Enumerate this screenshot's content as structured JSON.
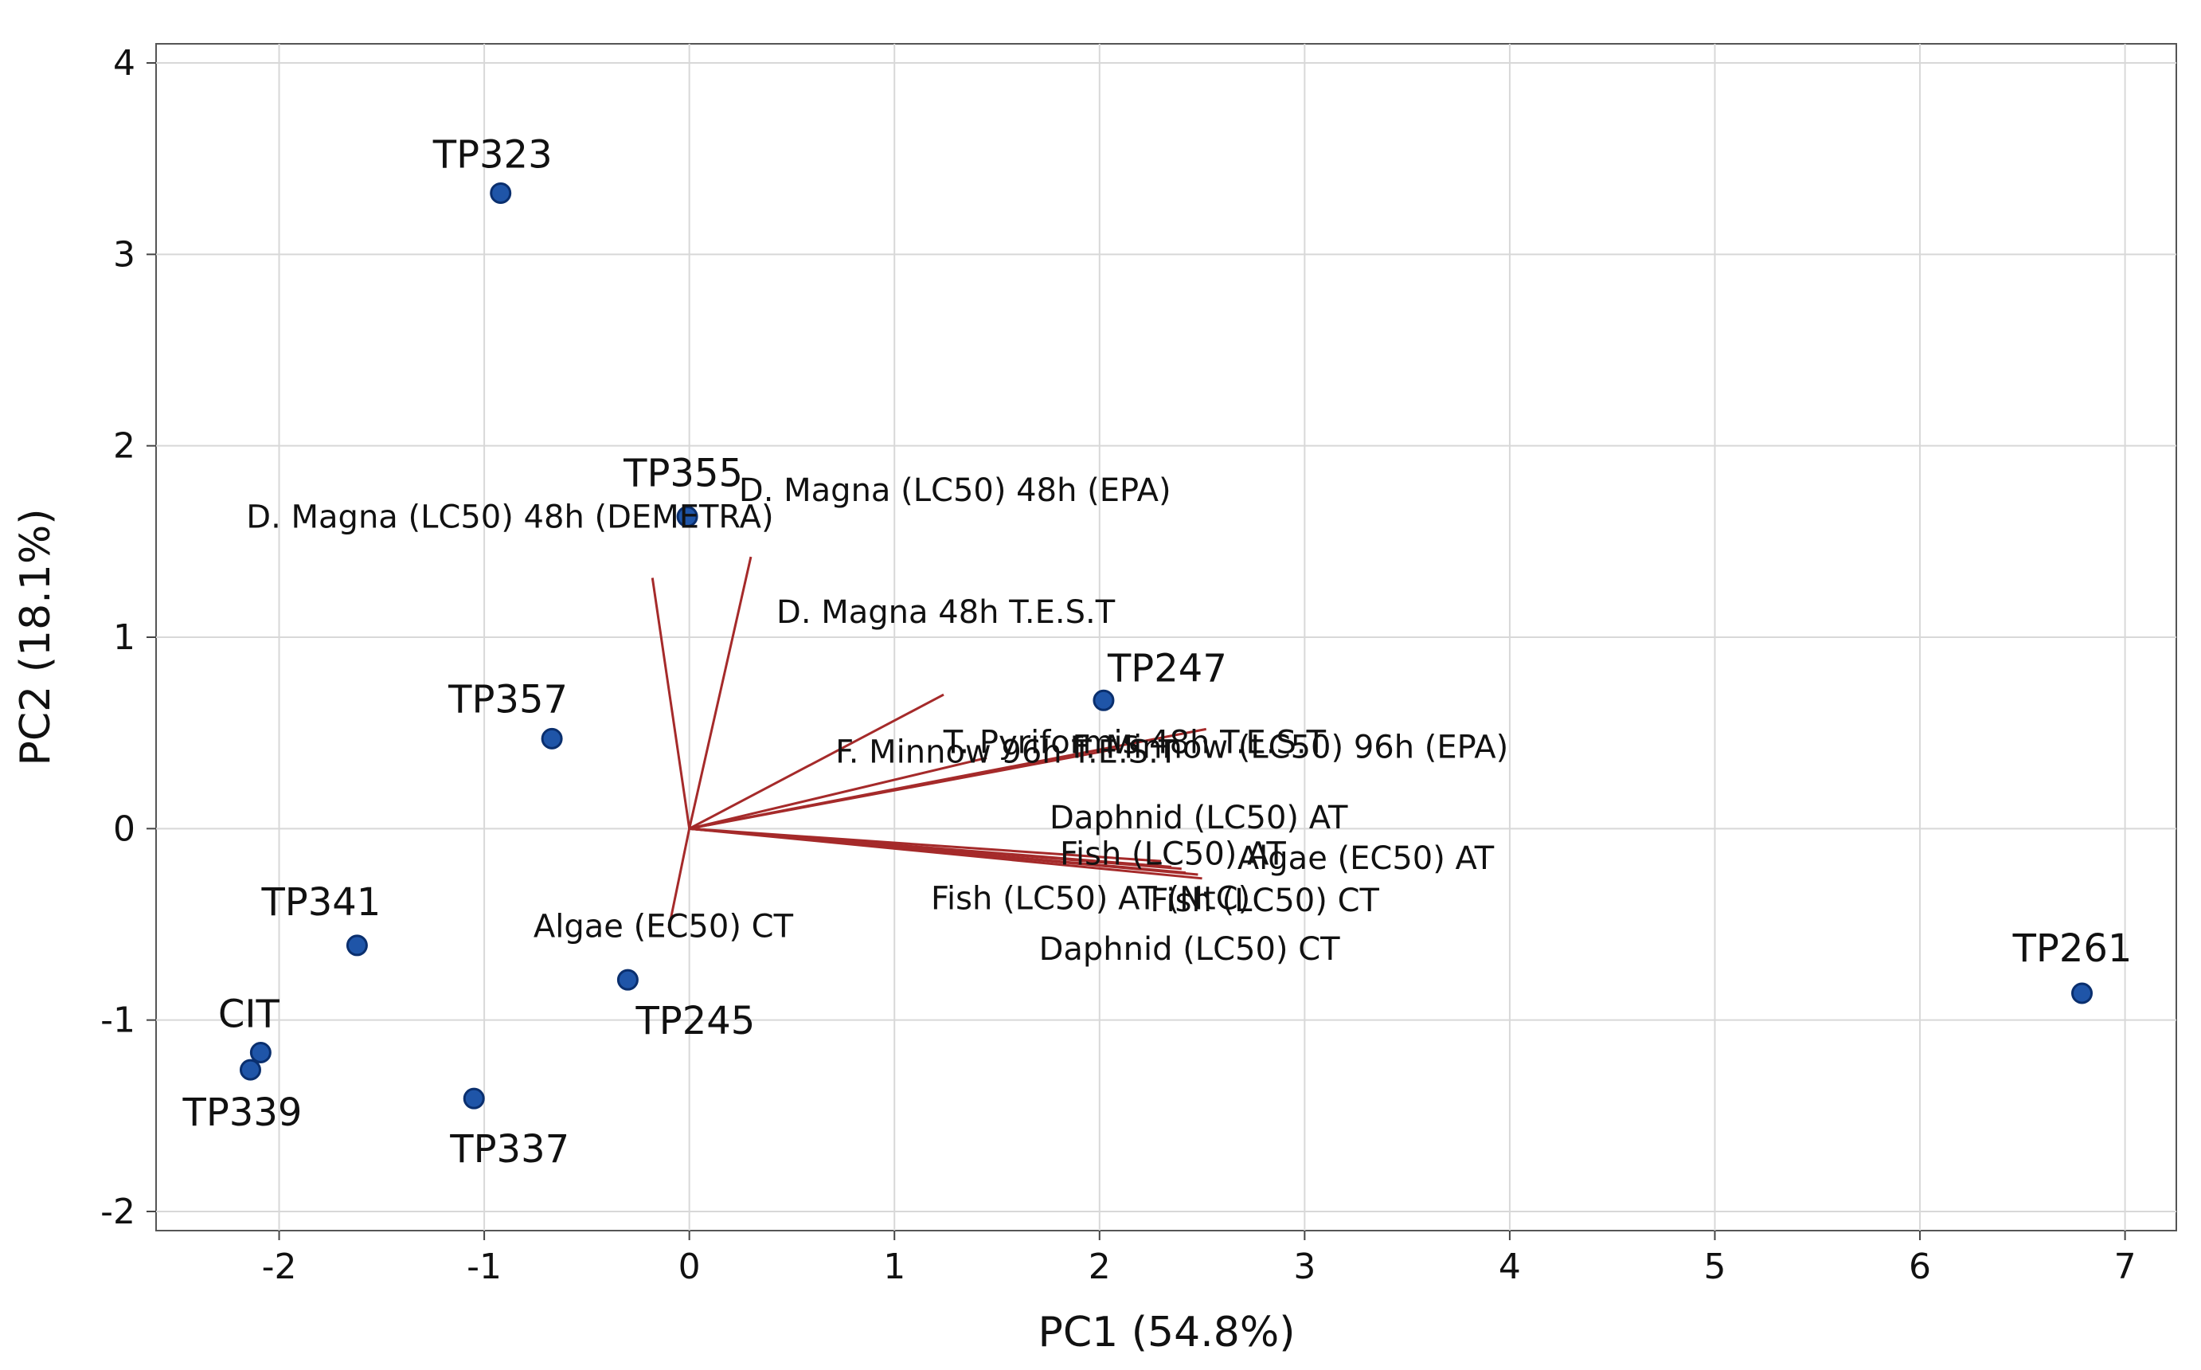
{
  "chart_data": {
    "type": "scatter",
    "subtype": "pca-biplot",
    "title": "",
    "xlabel": "PC1 (54.8%)",
    "ylabel": "PC2 (18.1%)",
    "xlim": [
      -2.6,
      7.25
    ],
    "ylim": [
      -2.1,
      4.1
    ],
    "xticks": [
      -2,
      -1,
      0,
      1,
      2,
      3,
      4,
      5,
      6,
      7
    ],
    "yticks": [
      -2,
      -1,
      0,
      1,
      2,
      3,
      4
    ],
    "grid": true,
    "colors": {
      "point": "#1f55a8",
      "point_edge": "#0a2f6e",
      "vector": "#a52a2a",
      "grid": "#d8d8d8",
      "axis": "#444444"
    },
    "points": [
      {
        "label": "TP323",
        "x": -0.92,
        "y": 3.32
      },
      {
        "label": "TP355",
        "x": -0.01,
        "y": 1.63
      },
      {
        "label": "TP357",
        "x": -0.67,
        "y": 0.47
      },
      {
        "label": "TP247",
        "x": 2.02,
        "y": 0.67
      },
      {
        "label": "TP341",
        "x": -1.62,
        "y": -0.61
      },
      {
        "label": "TP245",
        "x": -0.3,
        "y": -0.79
      },
      {
        "label": "CIT",
        "x": -2.09,
        "y": -1.17
      },
      {
        "label": "TP339",
        "x": -2.14,
        "y": -1.26
      },
      {
        "label": "TP337",
        "x": -1.05,
        "y": -1.41
      },
      {
        "label": "TP261",
        "x": 6.79,
        "y": -0.86
      }
    ],
    "vectors": [
      {
        "label": "D. Magna (LC50) 48h (EPA)",
        "x": 0.3,
        "y": 1.42
      },
      {
        "label": "D. Magna (LC50) 48h (DEMETRA)",
        "x": -0.18,
        "y": 1.31
      },
      {
        "label": "D. Magna 48h T.E.S.T",
        "x": 1.24,
        "y": 0.7
      },
      {
        "label": "F. Minnow (LC50) 96h (EPA)",
        "x": 2.1,
        "y": 0.42
      },
      {
        "label": "F. Minnow 96h T.E.S.T",
        "x": 1.45,
        "y": 0.37
      },
      {
        "label": "T. Pyriformis 48h T.E.S.T",
        "x": 2.52,
        "y": 0.52
      },
      {
        "label": "Daphnid (LC50) AT",
        "x": 2.3,
        "y": -0.17
      },
      {
        "label": "Fish (LC50) AT",
        "x": 2.35,
        "y": -0.2
      },
      {
        "label": "Algae (EC50) AT",
        "x": 2.4,
        "y": -0.21
      },
      {
        "label": "Fish (LC50) AT (NtC)",
        "x": 2.42,
        "y": -0.23
      },
      {
        "label": "Fish (LC50) CT",
        "x": 2.48,
        "y": -0.24
      },
      {
        "label": "Daphnid (LC50) CT",
        "x": 2.5,
        "y": -0.26
      },
      {
        "label": "Algae (EC50) CT",
        "x": -0.1,
        "y": -0.52
      }
    ]
  }
}
